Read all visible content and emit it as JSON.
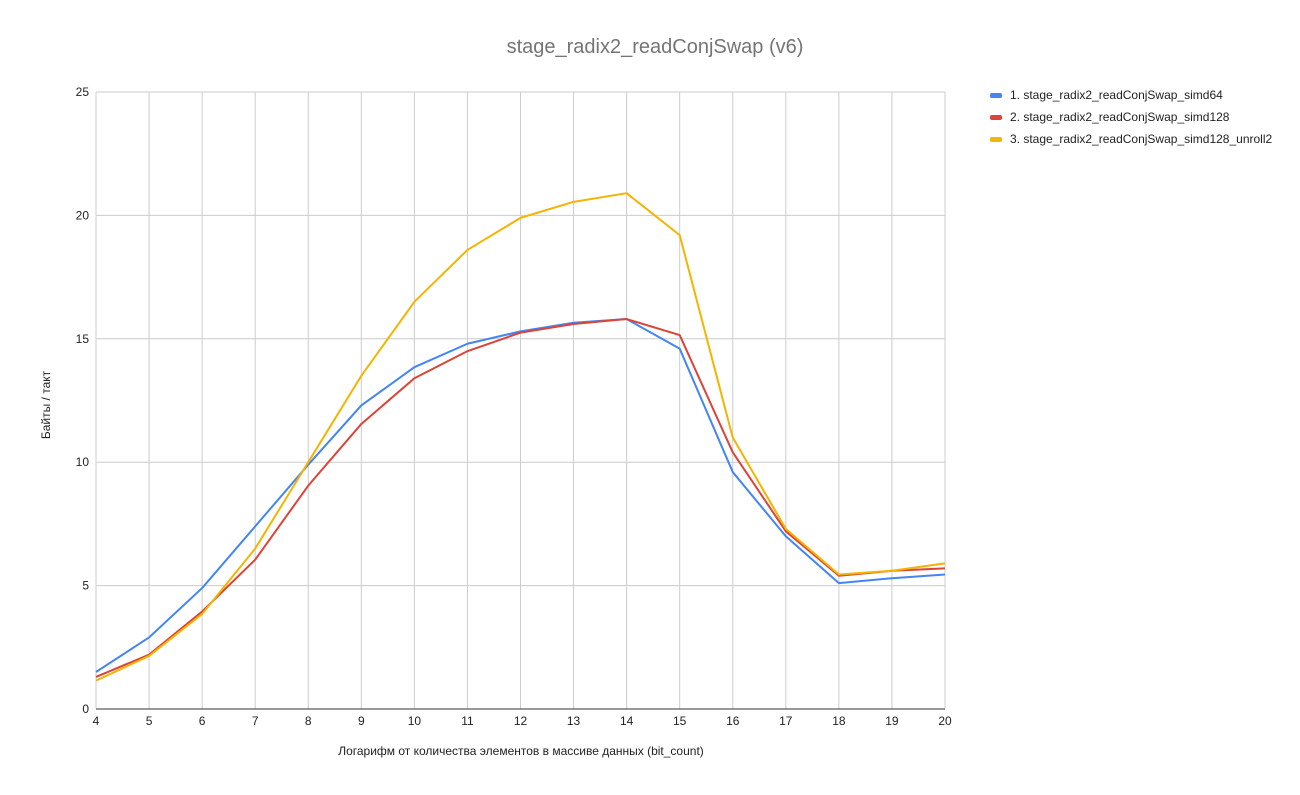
{
  "chart_data": {
    "type": "line",
    "title": "stage_radix2_readConjSwap (v6)",
    "xlabel": "Логарифм от количества элементов в массиве данных (bit_count)",
    "ylabel": "Байты / такт",
    "x": [
      4,
      5,
      6,
      7,
      8,
      9,
      10,
      11,
      12,
      13,
      14,
      15,
      16,
      17,
      18,
      19,
      20
    ],
    "xlim": [
      4,
      20
    ],
    "ylim": [
      0,
      25
    ],
    "yticks": [
      0,
      5,
      10,
      15,
      20,
      25
    ],
    "grid": true,
    "legend_position": "top-right",
    "series": [
      {
        "name": "1. stage_radix2_readConjSwap_simd64",
        "color": "#4285f4",
        "values": [
          1.5,
          2.9,
          4.9,
          7.4,
          9.9,
          12.3,
          13.85,
          14.8,
          15.3,
          15.65,
          15.8,
          14.6,
          9.6,
          7.0,
          5.1,
          5.3,
          5.45
        ]
      },
      {
        "name": "2. stage_radix2_readConjSwap_simd128",
        "color": "#db4437",
        "values": [
          1.3,
          2.2,
          3.95,
          6.05,
          9.05,
          11.55,
          13.4,
          14.5,
          15.25,
          15.6,
          15.8,
          15.15,
          10.4,
          7.2,
          5.4,
          5.6,
          5.7
        ]
      },
      {
        "name": "3. stage_radix2_readConjSwap_simd128_unroll2",
        "color": "#f4b400",
        "values": [
          1.15,
          2.15,
          3.85,
          6.5,
          10.0,
          13.5,
          16.5,
          18.6,
          19.9,
          20.55,
          20.9,
          19.2,
          11.0,
          7.3,
          5.45,
          5.6,
          5.9
        ]
      }
    ]
  }
}
